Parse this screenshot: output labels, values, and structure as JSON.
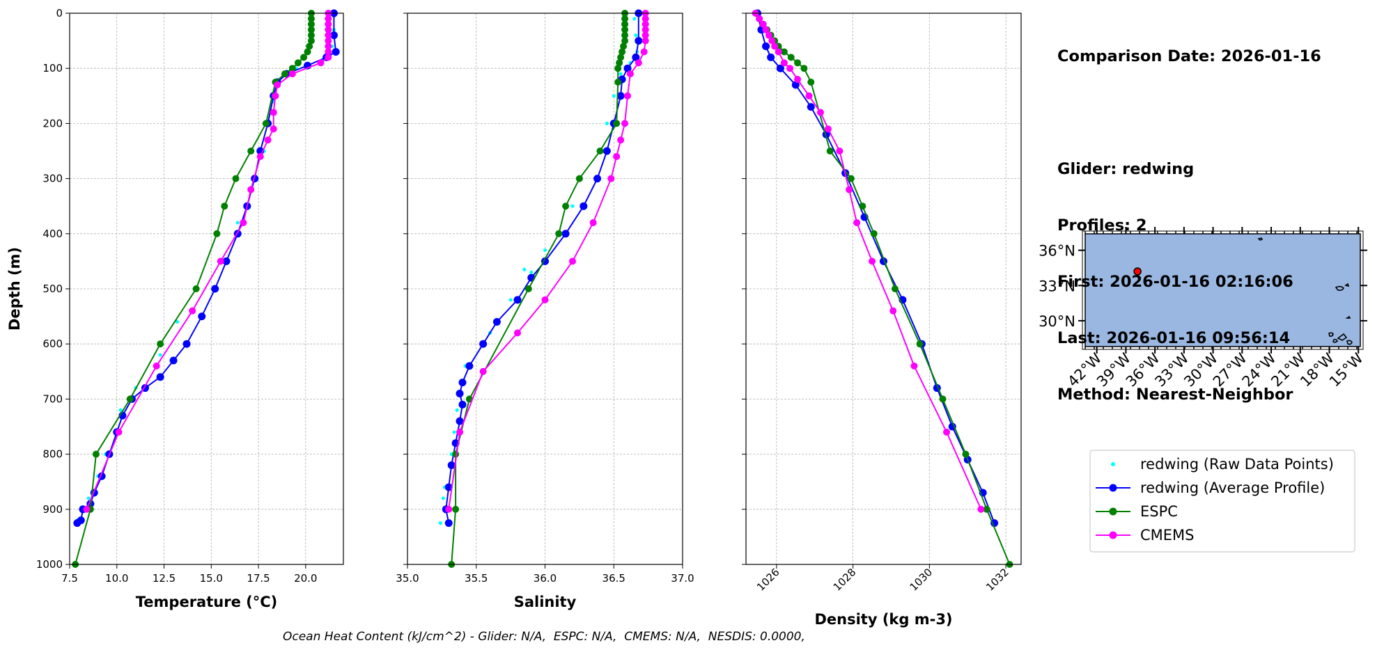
{
  "info": {
    "comparison_date": "Comparison Date: 2026-01-16",
    "glider": "Glider: redwing",
    "profiles": "Profiles: 2",
    "first": "First: 2026-01-16 02:16:06",
    "last": "Last: 2026-01-16 09:56:14",
    "method": "Method: Nearest-Neighbor"
  },
  "footer": "Ocean Heat Content (kJ/cm^2) - Glider: N/A,  ESPC: N/A,  CMEMS: N/A,  NESDIS: 0.0000,",
  "colors": {
    "raw": "#00ffff",
    "avg": "#0000ff",
    "espc": "#008000",
    "cmems": "#ff00ff",
    "ocean": "#99b7e1"
  },
  "chart_data": [
    {
      "type": "line",
      "xlabel": "Temperature (°C)",
      "ylabel": "Depth (m)",
      "xlim": [
        7.5,
        22.0
      ],
      "ylim": [
        1000,
        0
      ],
      "xticks": [
        "7.5",
        "10.0",
        "12.5",
        "15.0",
        "17.5",
        "20.0"
      ],
      "xtick_values": [
        7.5,
        10,
        12.5,
        15,
        17.5,
        20
      ],
      "yticks": [
        "0",
        "100",
        "200",
        "300",
        "400",
        "500",
        "600",
        "700",
        "800",
        "900",
        "1000"
      ],
      "grid": true,
      "series": [
        {
          "name": "redwing (Raw Data Points)",
          "style": "raw",
          "x": [
            21.5,
            21.5,
            21.4,
            21.3,
            20.9,
            19.5,
            18.6,
            18.3,
            17.8,
            17.3,
            16.4,
            15.4,
            14.2,
            13.2,
            12.3,
            11.0,
            10.2,
            9.9,
            9.4,
            9.0,
            8.8,
            8.5,
            8.2,
            7.9
          ],
          "y": [
            5,
            30,
            60,
            75,
            85,
            100,
            125,
            160,
            250,
            300,
            380,
            450,
            500,
            560,
            620,
            680,
            720,
            760,
            800,
            840,
            870,
            880,
            900,
            920
          ]
        },
        {
          "name": "redwing (Average Profile)",
          "style": "avg",
          "x": [
            21.5,
            21.5,
            21.6,
            21.1,
            20.1,
            19.0,
            18.5,
            18.3,
            18.0,
            17.6,
            17.3,
            16.9,
            16.4,
            15.8,
            15.2,
            14.5,
            13.7,
            13.0,
            12.3,
            11.5,
            10.8,
            10.3,
            10.0,
            9.6,
            9.2,
            8.8,
            8.6,
            8.2,
            8.1,
            7.9
          ],
          "y": [
            0,
            40,
            70,
            80,
            95,
            110,
            125,
            150,
            200,
            250,
            300,
            350,
            400,
            450,
            500,
            550,
            600,
            630,
            660,
            680,
            700,
            730,
            760,
            800,
            840,
            870,
            890,
            900,
            920,
            925
          ]
        },
        {
          "name": "ESPC",
          "style": "espc",
          "x": [
            20.3,
            20.3,
            20.3,
            20.3,
            20.3,
            20.3,
            20.2,
            20.1,
            19.9,
            19.6,
            19.3,
            18.9,
            18.4,
            17.9,
            17.1,
            16.3,
            15.7,
            15.3,
            14.2,
            12.3,
            10.7,
            8.9,
            8.6,
            7.8
          ],
          "y": [
            0,
            10,
            20,
            30,
            40,
            50,
            60,
            70,
            80,
            90,
            100,
            110,
            125,
            200,
            250,
            300,
            350,
            400,
            500,
            600,
            700,
            800,
            900,
            1000
          ]
        },
        {
          "name": "CMEMS",
          "style": "cmems",
          "x": [
            21.2,
            21.2,
            21.2,
            21.2,
            21.2,
            21.2,
            21.2,
            21.2,
            21.2,
            20.8,
            19.3,
            18.5,
            18.4,
            18.3,
            18.3,
            18.0,
            17.6,
            17.1,
            16.7,
            15.5,
            14.0,
            12.1,
            10.1,
            8.4
          ],
          "y": [
            0,
            10,
            20,
            30,
            40,
            50,
            60,
            70,
            80,
            90,
            110,
            130,
            150,
            180,
            210,
            230,
            260,
            320,
            380,
            450,
            540,
            640,
            760,
            900
          ]
        }
      ]
    },
    {
      "type": "line",
      "xlabel": "Salinity",
      "xlim": [
        35.0,
        37.0
      ],
      "ylim": [
        1000,
        0
      ],
      "xticks": [
        "35.0",
        "35.5",
        "36.0",
        "36.5",
        "37.0"
      ],
      "xtick_values": [
        35.0,
        35.5,
        36.0,
        36.5,
        37.0
      ],
      "grid": true,
      "series": [
        {
          "name": "redwing (Raw Data Points)",
          "style": "raw",
          "x": [
            36.65,
            36.66,
            36.67,
            36.62,
            36.55,
            36.5,
            36.45,
            36.42,
            36.2,
            36.0,
            35.85,
            35.9,
            35.75,
            35.6,
            35.42,
            35.38,
            35.36,
            35.34,
            35.32,
            35.27,
            35.26,
            35.24
          ],
          "y": [
            10,
            40,
            70,
            90,
            110,
            150,
            200,
            250,
            350,
            430,
            465,
            470,
            520,
            580,
            640,
            690,
            720,
            760,
            800,
            860,
            880,
            925
          ]
        },
        {
          "name": "redwing (Average Profile)",
          "style": "avg",
          "x": [
            36.68,
            36.68,
            36.66,
            36.6,
            36.56,
            36.55,
            36.5,
            36.45,
            36.38,
            36.28,
            36.15,
            36.0,
            35.9,
            35.8,
            35.65,
            35.55,
            35.45,
            35.4,
            35.38,
            35.4,
            35.38,
            35.35,
            35.32,
            35.3,
            35.28,
            35.3
          ],
          "y": [
            0,
            50,
            80,
            100,
            120,
            150,
            200,
            250,
            300,
            350,
            400,
            450,
            480,
            520,
            560,
            600,
            640,
            670,
            690,
            710,
            740,
            780,
            820,
            860,
            900,
            925
          ]
        },
        {
          "name": "ESPC",
          "style": "espc",
          "x": [
            36.58,
            36.58,
            36.58,
            36.58,
            36.58,
            36.58,
            36.57,
            36.56,
            36.55,
            36.54,
            36.53,
            36.53,
            36.52,
            36.4,
            36.25,
            36.15,
            36.1,
            35.88,
            35.45,
            35.35,
            35.35,
            35.32
          ],
          "y": [
            0,
            10,
            20,
            30,
            40,
            50,
            60,
            70,
            80,
            90,
            100,
            125,
            200,
            250,
            300,
            350,
            400,
            500,
            700,
            800,
            900,
            1000
          ]
        },
        {
          "name": "CMEMS",
          "style": "cmems",
          "x": [
            36.73,
            36.73,
            36.73,
            36.73,
            36.73,
            36.73,
            36.72,
            36.68,
            36.62,
            36.6,
            36.58,
            36.55,
            36.52,
            36.48,
            36.35,
            36.2,
            36.0,
            35.8,
            35.55,
            35.38,
            35.3
          ],
          "y": [
            0,
            10,
            20,
            30,
            40,
            50,
            70,
            90,
            110,
            150,
            200,
            230,
            260,
            300,
            380,
            450,
            520,
            580,
            650,
            760,
            900
          ]
        }
      ]
    },
    {
      "type": "line",
      "xlabel": "Density (kg m-3)",
      "xlim": [
        1025.2,
        1032.4
      ],
      "ylim": [
        1000,
        0
      ],
      "xticks": [
        "1026",
        "1028",
        "1030",
        "1032"
      ],
      "xtick_values": [
        1026,
        1028,
        1030,
        1032
      ],
      "grid": true,
      "series": [
        {
          "name": "redwing (Raw Data Points)",
          "style": "raw",
          "x": [
            1025.55,
            1025.65,
            1025.78,
            1025.9,
            1026.1,
            1026.5,
            1026.9,
            1027.3,
            1027.8,
            1028.3,
            1028.8,
            1029.3,
            1029.8,
            1030.2,
            1030.6,
            1031.0,
            1031.4,
            1031.75
          ],
          "y": [
            0,
            30,
            60,
            80,
            100,
            130,
            170,
            220,
            290,
            370,
            450,
            520,
            600,
            680,
            750,
            810,
            870,
            925
          ]
        },
        {
          "name": "redwing (Average Profile)",
          "style": "avg",
          "x": [
            1025.5,
            1025.6,
            1025.72,
            1025.85,
            1026.1,
            1026.5,
            1026.9,
            1027.3,
            1027.8,
            1028.3,
            1028.8,
            1029.3,
            1029.8,
            1030.2,
            1030.6,
            1031.0,
            1031.4,
            1031.7
          ],
          "y": [
            0,
            30,
            60,
            80,
            100,
            130,
            170,
            220,
            290,
            370,
            450,
            520,
            600,
            680,
            750,
            810,
            870,
            925
          ]
        },
        {
          "name": "ESPC",
          "style": "espc",
          "x": [
            1025.45,
            1025.55,
            1025.65,
            1025.75,
            1025.85,
            1025.95,
            1026.05,
            1026.2,
            1026.38,
            1026.55,
            1026.72,
            1026.9,
            1027.4,
            1027.95,
            1028.25,
            1028.55,
            1029.1,
            1029.75,
            1030.35,
            1030.95,
            1031.5,
            1032.1
          ],
          "y": [
            0,
            10,
            20,
            30,
            40,
            50,
            60,
            70,
            80,
            90,
            100,
            125,
            250,
            300,
            350,
            400,
            500,
            600,
            700,
            800,
            900,
            1000
          ]
        },
        {
          "name": "CMEMS",
          "style": "cmems",
          "x": [
            1025.45,
            1025.55,
            1025.65,
            1025.72,
            1025.8,
            1025.88,
            1025.95,
            1026.05,
            1026.2,
            1026.35,
            1026.55,
            1026.85,
            1027.15,
            1027.35,
            1027.65,
            1027.9,
            1028.1,
            1028.5,
            1029.05,
            1029.6,
            1030.45,
            1031.35
          ],
          "y": [
            0,
            10,
            20,
            30,
            40,
            50,
            60,
            70,
            90,
            100,
            120,
            150,
            180,
            210,
            250,
            320,
            380,
            450,
            540,
            640,
            760,
            900
          ]
        }
      ]
    }
  ],
  "map": {
    "lat_ticks": [
      "36°N",
      "33°N",
      "30°N"
    ],
    "lat_values": [
      36,
      33,
      30
    ],
    "lon_ticks": [
      "42°W",
      "39°W",
      "36°W",
      "33°W",
      "30°W",
      "27°W",
      "24°W",
      "21°W",
      "18°W",
      "15°W"
    ],
    "lon_values": [
      -42,
      -39,
      -36,
      -33,
      -30,
      -27,
      -24,
      -21,
      -18,
      -15
    ],
    "lon_range": [
      -43.2,
      -14.8
    ],
    "lat_range": [
      27.8,
      37.4
    ],
    "glider_location": {
      "lon": -37.8,
      "lat": 34.2
    }
  },
  "legend": [
    {
      "label": "redwing (Raw Data Points)",
      "style": "raw"
    },
    {
      "label": "redwing (Average Profile)",
      "style": "avg"
    },
    {
      "label": "ESPC",
      "style": "espc"
    },
    {
      "label": "CMEMS",
      "style": "cmems"
    }
  ]
}
